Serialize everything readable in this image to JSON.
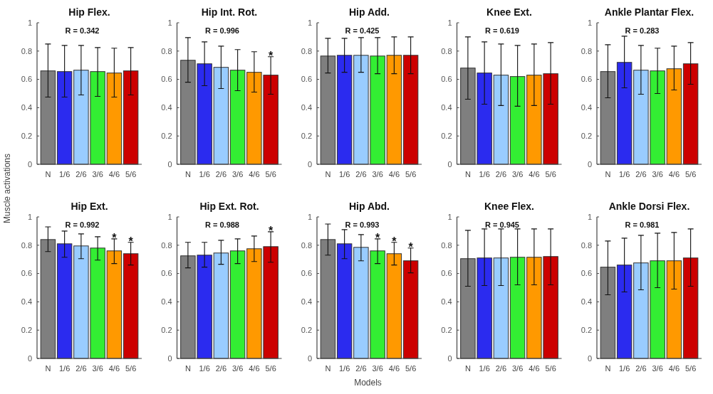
{
  "chart_data": [
    {
      "type": "bar",
      "title": "Hip Flex.",
      "categories": [
        "N",
        "1/6",
        "2/6",
        "3/6",
        "4/6",
        "5/6"
      ],
      "values": [
        0.66,
        0.655,
        0.665,
        0.655,
        0.645,
        0.66
      ],
      "colors": [
        "#7f7f7f",
        "#2b2bef",
        "#99ccff",
        "#33ee33",
        "#ff9900",
        "#cc0000"
      ],
      "errors": [
        [
          0.475,
          0.85
        ],
        [
          0.475,
          0.84
        ],
        [
          0.49,
          0.84
        ],
        [
          0.48,
          0.825
        ],
        [
          0.475,
          0.82
        ],
        [
          0.49,
          0.825
        ]
      ],
      "ylim": [
        0,
        1
      ],
      "yticks": [
        0,
        0.2,
        0.4,
        0.6,
        0.8,
        1
      ],
      "annotations": [
        "R = 0.342"
      ]
    },
    {
      "type": "bar",
      "title": "Hip Int. Rot.",
      "categories": [
        "N",
        "1/6",
        "2/6",
        "3/6",
        "4/6",
        "5/6"
      ],
      "values": [
        0.735,
        0.71,
        0.685,
        0.665,
        0.65,
        0.63
      ],
      "colors": [
        "#7f7f7f",
        "#2b2bef",
        "#99ccff",
        "#33ee33",
        "#ff9900",
        "#cc0000"
      ],
      "errors": [
        [
          0.58,
          0.895
        ],
        [
          0.555,
          0.865
        ],
        [
          0.535,
          0.835
        ],
        [
          0.52,
          0.81
        ],
        [
          0.51,
          0.795
        ],
        [
          0.495,
          0.76
        ]
      ],
      "ylim": [
        0,
        1
      ],
      "yticks": [
        0,
        0.2,
        0.4,
        0.6,
        0.8,
        1
      ],
      "annotations": [
        "R = 0.996"
      ],
      "value_labels": [
        null,
        null,
        null,
        null,
        null,
        "*"
      ]
    },
    {
      "type": "bar",
      "title": "Hip Add.",
      "categories": [
        "N",
        "1/6",
        "2/6",
        "3/6",
        "4/6",
        "5/6"
      ],
      "values": [
        0.765,
        0.77,
        0.77,
        0.765,
        0.77,
        0.77
      ],
      "colors": [
        "#7f7f7f",
        "#2b2bef",
        "#99ccff",
        "#33ee33",
        "#ff9900",
        "#cc0000"
      ],
      "errors": [
        [
          0.645,
          0.89
        ],
        [
          0.65,
          0.89
        ],
        [
          0.65,
          0.895
        ],
        [
          0.64,
          0.895
        ],
        [
          0.64,
          0.9
        ],
        [
          0.64,
          0.9
        ]
      ],
      "ylim": [
        0,
        1
      ],
      "yticks": [
        0,
        0.2,
        0.4,
        0.6,
        0.8,
        1
      ],
      "annotations": [
        "R = 0.425"
      ]
    },
    {
      "type": "bar",
      "title": "Knee Ext.",
      "categories": [
        "N",
        "1/6",
        "2/6",
        "3/6",
        "4/6",
        "5/6"
      ],
      "values": [
        0.68,
        0.645,
        0.63,
        0.62,
        0.63,
        0.64
      ],
      "colors": [
        "#7f7f7f",
        "#2b2bef",
        "#99ccff",
        "#33ee33",
        "#ff9900",
        "#cc0000"
      ],
      "errors": [
        [
          0.46,
          0.9
        ],
        [
          0.425,
          0.865
        ],
        [
          0.415,
          0.85
        ],
        [
          0.41,
          0.84
        ],
        [
          0.415,
          0.85
        ],
        [
          0.425,
          0.86
        ]
      ],
      "ylim": [
        0,
        1
      ],
      "yticks": [
        0,
        0.2,
        0.4,
        0.6,
        0.8,
        1
      ],
      "annotations": [
        "R = 0.619"
      ]
    },
    {
      "type": "bar",
      "title": "Ankle Plantar Flex.",
      "categories": [
        "N",
        "1/6",
        "2/6",
        "3/6",
        "4/6",
        "5/6"
      ],
      "values": [
        0.655,
        0.72,
        0.665,
        0.66,
        0.675,
        0.71
      ],
      "colors": [
        "#7f7f7f",
        "#2b2bef",
        "#99ccff",
        "#33ee33",
        "#ff9900",
        "#cc0000"
      ],
      "errors": [
        [
          0.47,
          0.845
        ],
        [
          0.54,
          0.905
        ],
        [
          0.495,
          0.84
        ],
        [
          0.5,
          0.82
        ],
        [
          0.525,
          0.835
        ],
        [
          0.565,
          0.86
        ]
      ],
      "ylim": [
        0,
        1
      ],
      "yticks": [
        0,
        0.2,
        0.4,
        0.6,
        0.8,
        1
      ],
      "annotations": [
        "R = 0.283"
      ]
    },
    {
      "type": "bar",
      "title": "Hip Ext.",
      "ylabel": "Muscle activations",
      "categories": [
        "N",
        "1/6",
        "2/6",
        "3/6",
        "4/6",
        "5/6"
      ],
      "values": [
        0.84,
        0.81,
        0.795,
        0.78,
        0.76,
        0.74
      ],
      "colors": [
        "#7f7f7f",
        "#2b2bef",
        "#99ccff",
        "#33ee33",
        "#ff9900",
        "#cc0000"
      ],
      "errors": [
        [
          0.755,
          0.93
        ],
        [
          0.715,
          0.9
        ],
        [
          0.705,
          0.88
        ],
        [
          0.695,
          0.86
        ],
        [
          0.67,
          0.845
        ],
        [
          0.66,
          0.82
        ]
      ],
      "ylim": [
        0,
        1
      ],
      "yticks": [
        0,
        0.2,
        0.4,
        0.6,
        0.8,
        1
      ],
      "annotations": [
        "R = 0.992"
      ],
      "value_labels": [
        null,
        null,
        null,
        null,
        "*",
        "*"
      ]
    },
    {
      "type": "bar",
      "title": "Hip Ext. Rot.",
      "categories": [
        "N",
        "1/6",
        "2/6",
        "3/6",
        "4/6",
        "5/6"
      ],
      "values": [
        0.725,
        0.73,
        0.745,
        0.76,
        0.775,
        0.79
      ],
      "colors": [
        "#7f7f7f",
        "#2b2bef",
        "#99ccff",
        "#33ee33",
        "#ff9900",
        "#cc0000"
      ],
      "errors": [
        [
          0.64,
          0.82
        ],
        [
          0.645,
          0.82
        ],
        [
          0.665,
          0.835
        ],
        [
          0.67,
          0.845
        ],
        [
          0.685,
          0.865
        ],
        [
          0.68,
          0.895
        ]
      ],
      "ylim": [
        0,
        1
      ],
      "yticks": [
        0,
        0.2,
        0.4,
        0.6,
        0.8,
        1
      ],
      "annotations": [
        "R = 0.988"
      ],
      "value_labels": [
        null,
        null,
        null,
        null,
        null,
        "*"
      ]
    },
    {
      "type": "bar",
      "title": "Hip Abd.",
      "xlabel": "Models",
      "categories": [
        "N",
        "1/6",
        "2/6",
        "3/6",
        "4/6",
        "5/6"
      ],
      "values": [
        0.84,
        0.81,
        0.785,
        0.76,
        0.74,
        0.69
      ],
      "colors": [
        "#7f7f7f",
        "#2b2bef",
        "#99ccff",
        "#33ee33",
        "#ff9900",
        "#cc0000"
      ],
      "errors": [
        [
          0.73,
          0.95
        ],
        [
          0.705,
          0.91
        ],
        [
          0.69,
          0.875
        ],
        [
          0.67,
          0.845
        ],
        [
          0.66,
          0.82
        ],
        [
          0.605,
          0.78
        ]
      ],
      "ylim": [
        0,
        1
      ],
      "yticks": [
        0,
        0.2,
        0.4,
        0.6,
        0.8,
        1
      ],
      "annotations": [
        "R = 0.993"
      ],
      "value_labels": [
        null,
        null,
        null,
        "*",
        "*",
        "*"
      ]
    },
    {
      "type": "bar",
      "title": "Knee Flex.",
      "categories": [
        "N",
        "1/6",
        "2/6",
        "3/6",
        "4/6",
        "5/6"
      ],
      "values": [
        0.705,
        0.71,
        0.71,
        0.715,
        0.715,
        0.72
      ],
      "colors": [
        "#7f7f7f",
        "#2b2bef",
        "#99ccff",
        "#33ee33",
        "#ff9900",
        "#cc0000"
      ],
      "errors": [
        [
          0.51,
          0.905
        ],
        [
          0.515,
          0.915
        ],
        [
          0.515,
          0.915
        ],
        [
          0.52,
          0.915
        ],
        [
          0.52,
          0.915
        ],
        [
          0.52,
          0.915
        ]
      ],
      "ylim": [
        0,
        1
      ],
      "yticks": [
        0,
        0.2,
        0.4,
        0.6,
        0.8,
        1
      ],
      "annotations": [
        "R = 0.945"
      ]
    },
    {
      "type": "bar",
      "title": "Ankle Dorsi Flex.",
      "categories": [
        "N",
        "1/6",
        "2/6",
        "3/6",
        "4/6",
        "5/6"
      ],
      "values": [
        0.645,
        0.66,
        0.675,
        0.69,
        0.69,
        0.71
      ],
      "colors": [
        "#7f7f7f",
        "#2b2bef",
        "#99ccff",
        "#33ee33",
        "#ff9900",
        "#cc0000"
      ],
      "errors": [
        [
          0.45,
          0.83
        ],
        [
          0.47,
          0.85
        ],
        [
          0.485,
          0.87
        ],
        [
          0.5,
          0.885
        ],
        [
          0.49,
          0.89
        ],
        [
          0.51,
          0.915
        ]
      ],
      "ylim": [
        0,
        1
      ],
      "yticks": [
        0,
        0.2,
        0.4,
        0.6,
        0.8,
        1
      ],
      "annotations": [
        "R = 0.981"
      ]
    }
  ]
}
